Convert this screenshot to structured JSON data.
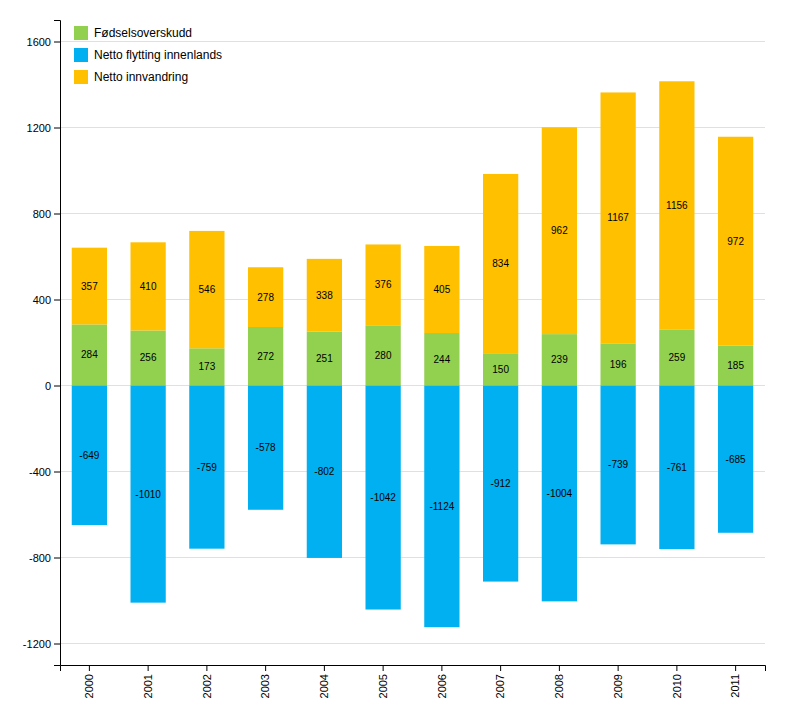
{
  "chart_data": {
    "type": "bar",
    "stacked": true,
    "categories": [
      "2000",
      "2001",
      "2002",
      "2003",
      "2004",
      "2005",
      "2006",
      "2007",
      "2008",
      "2009",
      "2010",
      "2011"
    ],
    "series": [
      {
        "name": "Fødselsoverskudd",
        "color": "#92d050",
        "values": [
          284,
          256,
          173,
          272,
          251,
          280,
          244,
          150,
          239,
          196,
          259,
          185
        ]
      },
      {
        "name": "Netto flytting innenlands",
        "color": "#00b0f0",
        "values": [
          -649,
          -1010,
          -759,
          -578,
          -802,
          -1042,
          -1124,
          -912,
          -1004,
          -739,
          -761,
          -685
        ]
      },
      {
        "name": "Netto innvandring",
        "color": "#ffc000",
        "values": [
          357,
          410,
          546,
          278,
          338,
          376,
          405,
          834,
          962,
          1167,
          1156,
          972
        ]
      }
    ],
    "ylim": [
      -1300,
      1700
    ],
    "yticks": [
      -1200,
      -800,
      -400,
      0,
      400,
      800,
      1200,
      1600
    ],
    "grid": true,
    "legend": "upper left",
    "data_labels": true
  }
}
